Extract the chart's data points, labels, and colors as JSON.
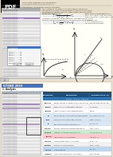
{
  "bg_color": "#e8e0cc",
  "page1_bg": "#fffff8",
  "page2_bg": "#fffff8",
  "pdf_icon_bg": "#000000",
  "pdf_icon_color": "#ffffff",
  "ui_bg": "#d8d8d8",
  "ui_row_light": "#f0f0f0",
  "ui_row_dark": "#e0e0e0",
  "ui_purple": "#7030a0",
  "ui_blue_btn": "#4472c4",
  "dialog_bg": "#f5f5f5",
  "dialog_title": "#4472c4",
  "gtsnx_bar": "#4472c4",
  "table_header": "#1f4e79",
  "table_sub": "#2e75b6",
  "table_row1": "#ffffff",
  "table_row2": "#f2f2f2",
  "table_blue": "#dae8f5",
  "table_green": "#c6efce",
  "table_pink": "#ffc7ce",
  "table_yellow": "#ffeb9c",
  "table_ltblue": "#bdd7ee",
  "red_box": "#ff0000",
  "text_dark": "#222222",
  "text_mid": "#555555",
  "text_light": "#888888",
  "border": "#aaaaaa"
}
